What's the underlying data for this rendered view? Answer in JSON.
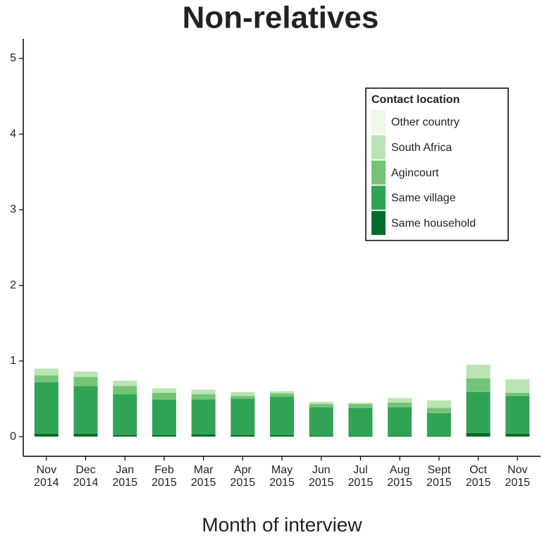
{
  "chart_data": {
    "type": "stacked_bar",
    "title": "Non-relatives",
    "x_label": "Month of interview",
    "categories": [
      "Nov 2014",
      "Dec 2014",
      "Jan 2015",
      "Feb 2015",
      "Mar 2015",
      "Apr 2015",
      "May 2015",
      "Jun 2015",
      "Jul 2015",
      "Aug 2015",
      "Sept 2015",
      "Oct 2015",
      "Nov 2015"
    ],
    "series": [
      {
        "name": "Same household",
        "color": "#006d2c",
        "values": [
          0.04,
          0.04,
          0.02,
          0.02,
          0.03,
          0.02,
          0.02,
          0.01,
          0.01,
          0.01,
          0.01,
          0.05,
          0.04
        ]
      },
      {
        "name": "Same village",
        "color": "#31a354",
        "values": [
          0.68,
          0.63,
          0.54,
          0.47,
          0.46,
          0.48,
          0.51,
          0.38,
          0.37,
          0.38,
          0.3,
          0.54,
          0.5
        ]
      },
      {
        "name": "Agincourt",
        "color": "#74c476",
        "values": [
          0.09,
          0.12,
          0.11,
          0.09,
          0.07,
          0.04,
          0.04,
          0.04,
          0.05,
          0.06,
          0.07,
          0.18,
          0.04
        ]
      },
      {
        "name": "South Africa",
        "color": "#bae4b3",
        "values": [
          0.09,
          0.07,
          0.07,
          0.06,
          0.06,
          0.05,
          0.03,
          0.03,
          0.02,
          0.06,
          0.1,
          0.18,
          0.18
        ]
      },
      {
        "name": "Other country",
        "color": "#edf8e9",
        "values": [
          0,
          0,
          0,
          0,
          0,
          0,
          0,
          0,
          0,
          0,
          0,
          0,
          0
        ]
      }
    ],
    "legend_title": "Contact location",
    "legend_position": "upper right",
    "ylim": [
      -0.26,
      5.26
    ],
    "yticks": [
      0,
      1,
      2,
      3,
      4,
      5
    ],
    "grid": false
  }
}
